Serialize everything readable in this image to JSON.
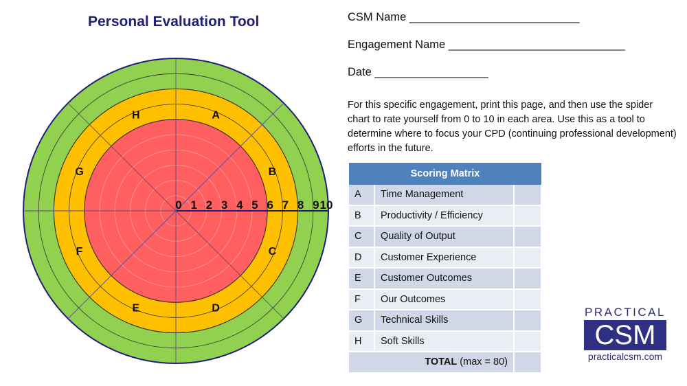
{
  "title": "Personal Evaluation Tool",
  "fields": {
    "csm": "CSM Name ___________________________",
    "engagement": "Engagement Name ____________________________",
    "date": "Date __________________"
  },
  "instructions": "For this specific engagement, print this page, and then use the spider chart to rate yourself from 0 to 10 in each area. Use this as a tool to determine where to focus your CPD (continuing professional development) efforts in the future.",
  "wheel": {
    "scale": [
      "0",
      "1",
      "2",
      "3",
      "4",
      "5",
      "6",
      "7",
      "8",
      "9",
      "10"
    ],
    "sectors": [
      "A",
      "B",
      "C",
      "D",
      "E",
      "F",
      "G",
      "H"
    ],
    "zones": [
      {
        "to": 6,
        "color": "#ff5f5f"
      },
      {
        "to": 8,
        "color": "#ffc000"
      },
      {
        "to": 10,
        "color": "#92d050"
      }
    ]
  },
  "matrix": {
    "header": "Scoring Matrix",
    "rows": [
      {
        "letter": "A",
        "area": "Time Management"
      },
      {
        "letter": "B",
        "area": "Productivity / Efficiency"
      },
      {
        "letter": "C",
        "area": "Quality of Output"
      },
      {
        "letter": "D",
        "area": "Customer Experience"
      },
      {
        "letter": "E",
        "area": "Customer Outcomes"
      },
      {
        "letter": "F",
        "area": "Our Outcomes"
      },
      {
        "letter": "G",
        "area": "Technical Skills"
      },
      {
        "letter": "H",
        "area": "Soft Skills"
      }
    ],
    "total_bold": "TOTAL",
    "total_rest": " (max = 80)"
  },
  "logo": {
    "top": "PRACTICAL",
    "main": "CSM",
    "url": "practicalcsm.com"
  }
}
